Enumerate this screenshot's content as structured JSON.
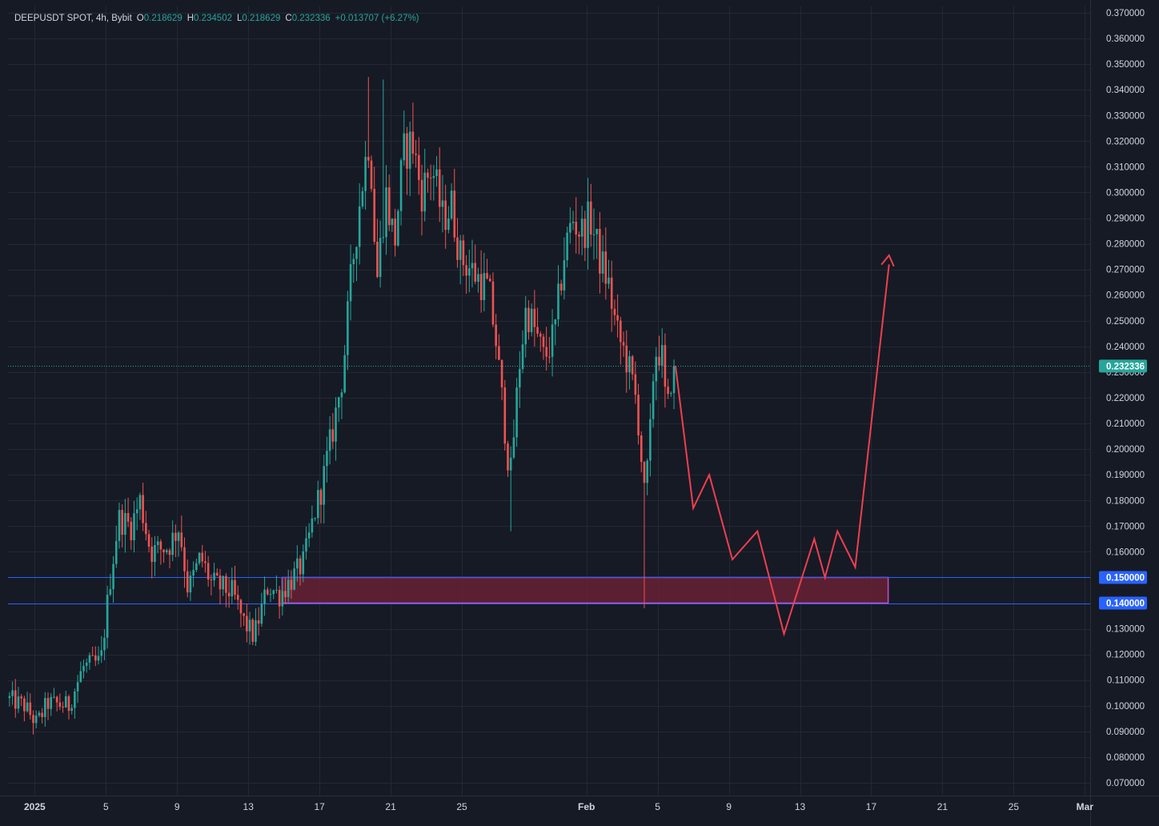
{
  "header": {
    "symbol": "DEEPUSDT SPOT, 4h, Bybit",
    "open_label": "O",
    "open": "0.218629",
    "high_label": "H",
    "high": "0.234502",
    "low_label": "L",
    "low": "0.218629",
    "close_label": "C",
    "close": "0.232336",
    "change": "+0.013707 (+6.27%)"
  },
  "colors": {
    "background": "#161a25",
    "grid": "#232834",
    "up": "#26a69a",
    "down": "#ef5350",
    "level_line": "#2962ff",
    "zone_fill": "#6b2235",
    "zone_border": "#c050c8",
    "projection": "#ef3f4f",
    "current_price": "#26a69a"
  },
  "chart_data": {
    "type": "candlestick",
    "symbol": "DEEPUSDT SPOT",
    "timeframe": "4h",
    "exchange": "Bybit",
    "y_axis": {
      "ylim": [
        0.065,
        0.3725
      ],
      "ticks": [
        "0.370000",
        "0.360000",
        "0.350000",
        "0.340000",
        "0.330000",
        "0.320000",
        "0.310000",
        "0.300000",
        "0.290000",
        "0.280000",
        "0.270000",
        "0.260000",
        "0.250000",
        "0.240000",
        "0.230000",
        "0.220000",
        "0.210000",
        "0.200000",
        "0.190000",
        "0.180000",
        "0.170000",
        "0.160000",
        "0.150000",
        "0.140000",
        "0.130000",
        "0.120000",
        "0.110000",
        "0.100000",
        "0.090000",
        "0.080000",
        "0.070000"
      ]
    },
    "x_axis": {
      "range_days": [
        -0.5,
        60.3
      ],
      "ticks": [
        {
          "day": 1,
          "label": "2025",
          "bold": true
        },
        {
          "day": 5,
          "label": "5"
        },
        {
          "day": 9,
          "label": "9"
        },
        {
          "day": 13,
          "label": "13"
        },
        {
          "day": 17,
          "label": "17"
        },
        {
          "day": 21,
          "label": "21"
        },
        {
          "day": 25,
          "label": "25"
        },
        {
          "day": 32,
          "label": "Feb",
          "bold": true
        },
        {
          "day": 36,
          "label": "5"
        },
        {
          "day": 40,
          "label": "9"
        },
        {
          "day": 44,
          "label": "13"
        },
        {
          "day": 48,
          "label": "17"
        },
        {
          "day": 52,
          "label": "21"
        },
        {
          "day": 56,
          "label": "25"
        },
        {
          "day": 60,
          "label": "Mar",
          "bold": true
        }
      ]
    },
    "price_path": [
      [
        -0.5,
        0.103
      ],
      [
        0.5,
        0.1
      ],
      [
        1.2,
        0.093
      ],
      [
        1.8,
        0.101
      ],
      [
        3.0,
        0.1
      ],
      [
        3.8,
        0.115
      ],
      [
        4.8,
        0.117
      ],
      [
        5.3,
        0.148
      ],
      [
        5.8,
        0.173
      ],
      [
        6.5,
        0.17
      ],
      [
        7.0,
        0.18
      ],
      [
        7.6,
        0.16
      ],
      [
        8.6,
        0.162
      ],
      [
        9.2,
        0.17
      ],
      [
        9.7,
        0.145
      ],
      [
        10.4,
        0.158
      ],
      [
        11.0,
        0.148
      ],
      [
        12.2,
        0.144
      ],
      [
        12.8,
        0.133
      ],
      [
        13.4,
        0.127
      ],
      [
        14.2,
        0.147
      ],
      [
        14.8,
        0.143
      ],
      [
        15.6,
        0.15
      ],
      [
        16.2,
        0.156
      ],
      [
        16.8,
        0.175
      ],
      [
        17.2,
        0.185
      ],
      [
        17.9,
        0.21
      ],
      [
        18.4,
        0.23
      ],
      [
        18.9,
        0.27
      ],
      [
        19.4,
        0.3
      ],
      [
        19.9,
        0.323
      ],
      [
        20.3,
        0.265
      ],
      [
        20.8,
        0.3
      ],
      [
        21.3,
        0.28
      ],
      [
        21.8,
        0.315
      ],
      [
        22.3,
        0.32
      ],
      [
        22.8,
        0.3
      ],
      [
        23.4,
        0.31
      ],
      [
        24.0,
        0.29
      ],
      [
        24.5,
        0.295
      ],
      [
        25.0,
        0.275
      ],
      [
        25.6,
        0.27
      ],
      [
        26.2,
        0.265
      ],
      [
        26.6,
        0.262
      ],
      [
        27.0,
        0.242
      ],
      [
        27.4,
        0.215
      ],
      [
        27.8,
        0.188
      ],
      [
        28.3,
        0.232
      ],
      [
        28.7,
        0.255
      ],
      [
        29.2,
        0.246
      ],
      [
        29.7,
        0.235
      ],
      [
        30.3,
        0.245
      ],
      [
        30.8,
        0.275
      ],
      [
        31.3,
        0.29
      ],
      [
        31.8,
        0.284
      ],
      [
        32.3,
        0.29
      ],
      [
        32.8,
        0.275
      ],
      [
        33.3,
        0.265
      ],
      [
        33.8,
        0.245
      ],
      [
        34.3,
        0.236
      ],
      [
        34.8,
        0.222
      ],
      [
        35.1,
        0.205
      ],
      [
        35.3,
        0.18
      ],
      [
        35.6,
        0.197
      ],
      [
        35.9,
        0.238
      ],
      [
        36.3,
        0.238
      ],
      [
        36.6,
        0.212
      ],
      [
        36.9,
        0.232
      ]
    ],
    "last_price": 0.232336,
    "levels": [
      {
        "price": 0.15,
        "label": "0.150000"
      },
      {
        "price": 0.14,
        "label": "0.140000"
      }
    ],
    "current_price_label": "0.232336",
    "zone": {
      "price_top": 0.15,
      "price_bottom": 0.14,
      "day_start": 14.9,
      "day_end": 48.95
    },
    "projection_path": [
      [
        37.0,
        0.2325
      ],
      [
        38.0,
        0.177
      ],
      [
        38.9,
        0.19
      ],
      [
        40.2,
        0.157
      ],
      [
        41.6,
        0.168
      ],
      [
        43.1,
        0.128
      ],
      [
        44.8,
        0.165
      ],
      [
        45.4,
        0.15
      ],
      [
        46.1,
        0.168
      ],
      [
        47.1,
        0.154
      ],
      [
        49.0,
        0.272
      ]
    ],
    "projection_arrow": {
      "from": [
        48.2,
        0.235
      ],
      "to": [
        49.0,
        0.2755
      ]
    }
  }
}
